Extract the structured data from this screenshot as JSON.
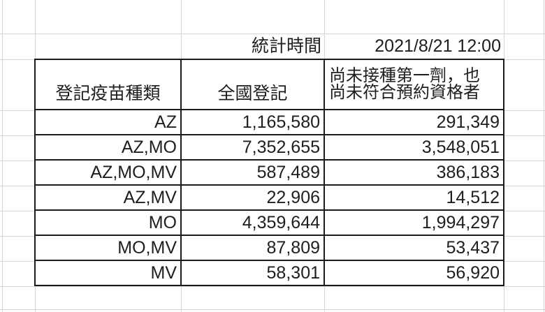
{
  "colors": {
    "background": "#ffffff",
    "text": "#1e1e1e",
    "table_border": "#1a1a1a",
    "gridline": "#d6d6d6"
  },
  "stats_time": {
    "label": "統計時間",
    "value": "2021/8/21 12:00"
  },
  "table": {
    "headers": {
      "vaccine_type": "登記疫苗種類",
      "national_registration": "全國登記",
      "pending_line1": "尚未接種第一劑，也",
      "pending_line2": "尚未符合預約資格者"
    },
    "rows": [
      {
        "type": "AZ",
        "national": "1,165,580",
        "pending": "291,349"
      },
      {
        "type": "AZ,MO",
        "national": "7,352,655",
        "pending": "3,548,051"
      },
      {
        "type": "AZ,MO,MV",
        "national": "587,489",
        "pending": "386,183"
      },
      {
        "type": "AZ,MV",
        "national": "22,906",
        "pending": "14,512"
      },
      {
        "type": "MO",
        "national": "4,359,644",
        "pending": "1,994,297"
      },
      {
        "type": "MO,MV",
        "national": "87,809",
        "pending": "53,437"
      },
      {
        "type": "MV",
        "national": "58,301",
        "pending": "56,920"
      }
    ]
  }
}
